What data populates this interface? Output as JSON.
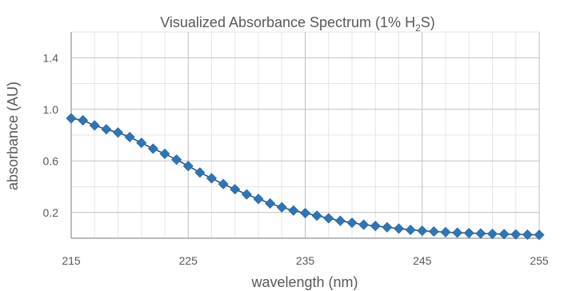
{
  "chart_data": {
    "type": "line",
    "title": "Visualized Absorbance Spectrum (1% H",
    "title_subscript": "2",
    "title_suffix": "S)",
    "xlabel": "wavelength (nm)",
    "ylabel": "absorbance (AU)",
    "xlim": [
      215,
      255
    ],
    "ylim": [
      0,
      1.6
    ],
    "xticks": [
      215,
      225,
      235,
      245,
      255
    ],
    "yticks": [
      0.2,
      0.6,
      1.0,
      1.4
    ],
    "ytick_labels": [
      "0.2",
      "0.6",
      "1.0",
      "1.4"
    ],
    "x_minor_step": 2,
    "y_minor_step": 0.2,
    "grid": true,
    "legend": "none",
    "marker": "diamond",
    "series_color": "#2E75B6",
    "series_line_color": "#1F4E79",
    "series": [
      {
        "x": [
          215,
          216,
          217,
          218,
          219,
          220,
          221,
          222,
          223,
          224,
          225,
          226,
          227,
          228,
          229,
          230,
          231,
          232,
          233,
          234,
          235,
          236,
          237,
          238,
          239,
          240,
          241,
          242,
          243,
          244,
          245,
          246,
          247,
          248,
          249,
          250,
          251,
          252,
          253,
          254,
          255
        ],
        "values": [
          0.93,
          0.915,
          0.875,
          0.845,
          0.82,
          0.785,
          0.74,
          0.695,
          0.655,
          0.61,
          0.56,
          0.51,
          0.465,
          0.42,
          0.38,
          0.34,
          0.305,
          0.27,
          0.24,
          0.215,
          0.195,
          0.175,
          0.155,
          0.135,
          0.12,
          0.105,
          0.095,
          0.085,
          0.075,
          0.065,
          0.058,
          0.052,
          0.047,
          0.043,
          0.04,
          0.037,
          0.034,
          0.032,
          0.03,
          0.028,
          0.026
        ]
      }
    ]
  }
}
